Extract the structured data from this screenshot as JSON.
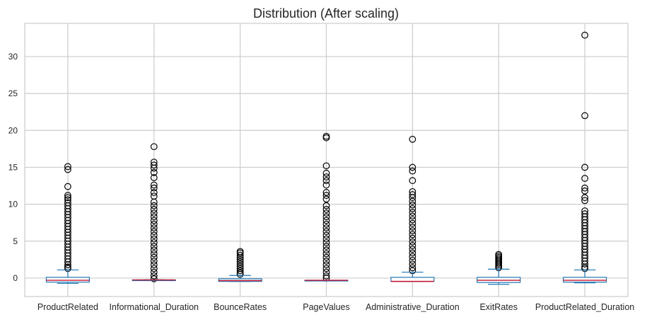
{
  "chart_data": {
    "type": "box",
    "title": "Distribution (After scaling)",
    "xlabel": "",
    "ylabel": "",
    "ylim": [
      -2.5,
      34.5
    ],
    "yticks": [
      0,
      5,
      10,
      15,
      20,
      25,
      30
    ],
    "grid": true,
    "colors": {
      "box": "#1f77b4",
      "median": "#c8102e",
      "grid": "#cccccc",
      "flier": "#000000"
    },
    "categories": [
      "ProductRelated",
      "Informational_Duration",
      "BounceRates",
      "PageValues",
      "Administrative_Duration",
      "ExitRates",
      "ProductRelated_Duration"
    ],
    "boxes": [
      {
        "name": "ProductRelated",
        "whislo": -0.72,
        "q1": -0.55,
        "med": -0.3,
        "q3": 0.1,
        "whishi": 1.1,
        "fliers": [
          15.1,
          14.7,
          12.4,
          11.2,
          10.9,
          10.6,
          10.2,
          9.8,
          9.4,
          9.0,
          8.6,
          8.2,
          7.8,
          7.4,
          7.0,
          6.6,
          6.2,
          5.8,
          5.4,
          5.0,
          4.6,
          4.2,
          3.8,
          3.4,
          3.0,
          2.6,
          2.2,
          1.8,
          1.5,
          1.3
        ]
      },
      {
        "name": "Informational_Duration",
        "whislo": -0.25,
        "q1": -0.25,
        "med": -0.25,
        "q3": -0.25,
        "whishi": -0.25,
        "fliers": [
          17.8,
          15.7,
          15.3,
          14.9,
          14.3,
          13.6,
          12.6,
          12.2,
          11.6,
          11.1,
          10.3,
          9.8,
          9.3,
          8.8,
          8.3,
          7.8,
          7.3,
          6.8,
          6.3,
          5.8,
          5.3,
          4.8,
          4.3,
          3.8,
          3.3,
          2.8,
          2.3,
          1.8,
          1.3,
          0.8,
          0.3,
          -0.1
        ]
      },
      {
        "name": "BounceRates",
        "whislo": -0.45,
        "q1": -0.45,
        "med": -0.35,
        "q3": -0.1,
        "whishi": 0.35,
        "fliers": [
          3.6,
          3.4,
          3.1,
          2.8,
          2.5,
          2.2,
          1.9,
          1.6,
          1.3,
          1.0,
          0.7,
          0.5
        ]
      },
      {
        "name": "PageValues",
        "whislo": -0.3,
        "q1": -0.3,
        "med": -0.3,
        "q3": -0.3,
        "whishi": -0.3,
        "fliers": [
          19.2,
          19.0,
          15.2,
          14.2,
          13.7,
          13.2,
          12.6,
          11.6,
          11.2,
          10.7,
          9.8,
          9.3,
          8.8,
          8.3,
          7.8,
          7.3,
          6.8,
          6.3,
          5.8,
          5.3,
          4.8,
          4.3,
          3.8,
          3.3,
          2.8,
          2.3,
          1.8,
          1.3,
          0.8,
          0.3,
          0.0
        ]
      },
      {
        "name": "Administrative_Duration",
        "whislo": -0.45,
        "q1": -0.45,
        "med": -0.45,
        "q3": 0.1,
        "whishi": 0.8,
        "fliers": [
          18.8,
          15.0,
          14.5,
          13.2,
          11.7,
          11.3,
          10.9,
          10.4,
          9.9,
          9.4,
          8.9,
          8.4,
          7.9,
          7.4,
          6.9,
          6.4,
          5.9,
          5.4,
          4.9,
          4.4,
          3.9,
          3.4,
          2.9,
          2.4,
          1.9,
          1.4,
          1.0
        ]
      },
      {
        "name": "ExitRates",
        "whislo": -0.85,
        "q1": -0.6,
        "med": -0.3,
        "q3": 0.1,
        "whishi": 1.2,
        "fliers": [
          3.2,
          3.0,
          2.8,
          2.6,
          2.4,
          2.2,
          2.0,
          1.8,
          1.6,
          1.4
        ]
      },
      {
        "name": "ProductRelated_Duration",
        "whislo": -0.65,
        "q1": -0.55,
        "med": -0.3,
        "q3": 0.1,
        "whishi": 1.1,
        "fliers": [
          32.9,
          22.0,
          15.0,
          13.5,
          12.2,
          11.8,
          10.9,
          10.5,
          9.1,
          8.7,
          8.3,
          7.9,
          7.5,
          7.1,
          6.7,
          6.3,
          5.9,
          5.5,
          5.1,
          4.7,
          4.3,
          3.9,
          3.5,
          3.1,
          2.7,
          2.3,
          1.9,
          1.5,
          1.3
        ]
      }
    ]
  }
}
